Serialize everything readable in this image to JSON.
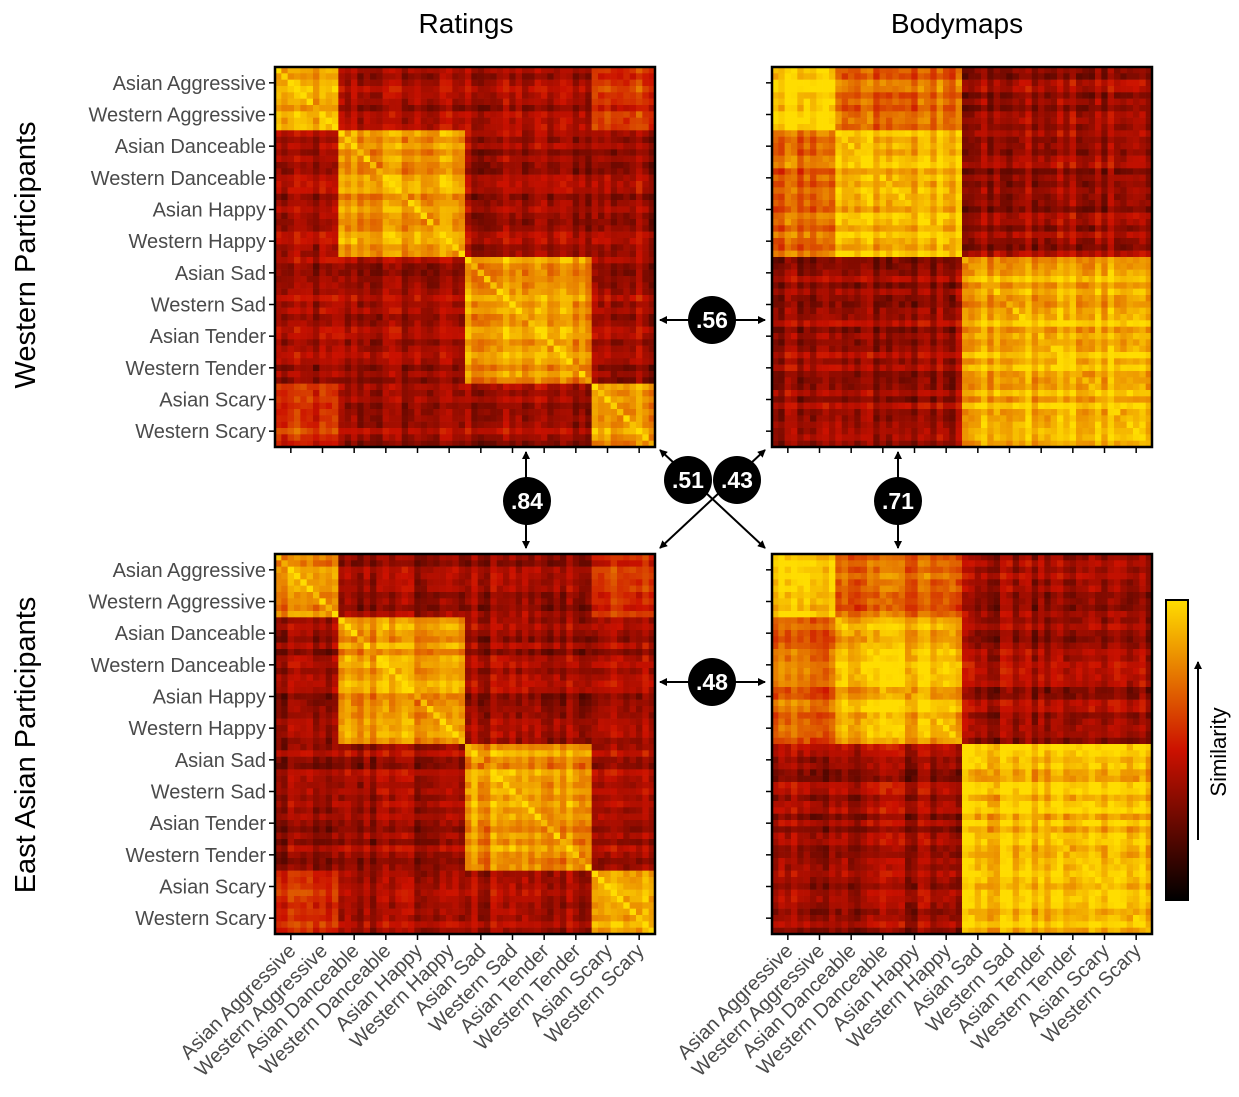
{
  "chart_data": {
    "type": "heatmap",
    "column_titles": [
      "Ratings",
      "Bodymaps"
    ],
    "row_titles": [
      "Western Participants",
      "East Asian Participants"
    ],
    "categories": [
      "Asian Aggressive",
      "Western Aggressive",
      "Asian Danceable",
      "Western Danceable",
      "Asian Happy",
      "Western Happy",
      "Asian Sad",
      "Western Sad",
      "Asian Tender",
      "Western Tender",
      "Asian Scary",
      "Western Scary"
    ],
    "matrices": [
      {
        "row": "Western Participants",
        "column": "Ratings"
      },
      {
        "row": "Western Participants",
        "column": "Bodymaps"
      },
      {
        "row": "East Asian Participants",
        "column": "Ratings"
      },
      {
        "row": "East Asian Participants",
        "column": "Bodymaps"
      }
    ],
    "correlations": [
      {
        "label": ".56",
        "between": [
          "Western Ratings",
          "Western Bodymaps"
        ]
      },
      {
        "label": ".84",
        "between": [
          "Western Ratings",
          "East Asian Ratings"
        ]
      },
      {
        "label": ".71",
        "between": [
          "Western Bodymaps",
          "East Asian Bodymaps"
        ]
      },
      {
        "label": ".51",
        "between": [
          "Western Bodymaps",
          "East Asian Ratings"
        ]
      },
      {
        "label": ".43",
        "between": [
          "Western Ratings",
          "East Asian Bodymaps"
        ]
      },
      {
        "label": ".48",
        "between": [
          "East Asian Ratings",
          "East Asian Bodymaps"
        ]
      }
    ],
    "colorbar": {
      "label": "Similarity",
      "colormap": [
        "#000000",
        "#cc1100",
        "#ffdd00"
      ]
    }
  }
}
